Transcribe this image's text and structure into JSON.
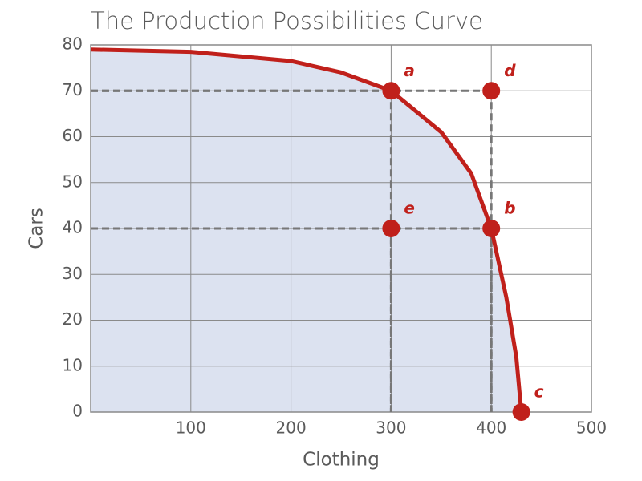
{
  "chart_data": {
    "type": "line",
    "title": "The Production Possibilities Curve",
    "x_label": "Clothing",
    "y_label": "Cars",
    "curve": {
      "color": "#c0201b",
      "x": [
        0,
        100,
        200,
        250,
        300,
        350,
        380,
        400,
        415,
        425,
        430
      ],
      "values": [
        79,
        78.5,
        76.5,
        74,
        70,
        61,
        52,
        40,
        25,
        12,
        0
      ]
    },
    "fill_color": "#dce2f0",
    "points": [
      {
        "label": "a",
        "x": 300,
        "y": 70
      },
      {
        "label": "b",
        "x": 400,
        "y": 40
      },
      {
        "label": "c",
        "x": 430,
        "y": 0
      },
      {
        "label": "d",
        "x": 400,
        "y": 70
      },
      {
        "label": "e",
        "x": 300,
        "y": 40
      }
    ],
    "xlim": [
      0,
      500
    ],
    "ylim": [
      0,
      80
    ],
    "xticks": [
      100,
      200,
      300,
      400,
      500
    ],
    "yticks": [
      0,
      10,
      20,
      30,
      40,
      50,
      60,
      70,
      80
    ],
    "grid": true
  }
}
